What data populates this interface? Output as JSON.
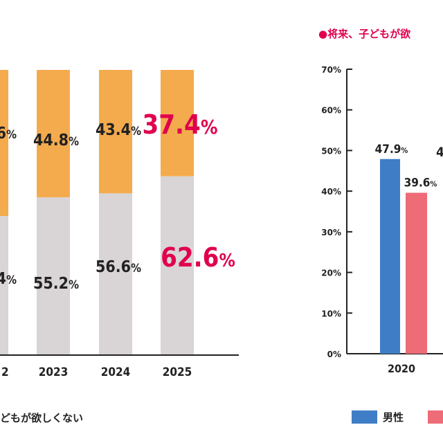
{
  "colors": {
    "orange": "#f4ab4d",
    "gray": "#d9d4d5",
    "accent": "#e0004d",
    "text": "#222222",
    "male": "#3f7ec6",
    "female": "#ee6b78"
  },
  "chart_data": [
    {
      "type": "bar",
      "stacked": true,
      "categories": [
        "2",
        "2023",
        "2024",
        "2025"
      ],
      "series": [
        {
          "values_label": [
            "4%",
            "55.2%",
            "56.6%",
            "62.6%"
          ],
          "values": [
            null,
            55.2,
            56.6,
            62.6
          ],
          "color": "#d9d4d5"
        },
        {
          "values_label": [
            "6%",
            "44.8%",
            "43.4%",
            "37.4%"
          ],
          "values": [
            null,
            44.8,
            43.4,
            37.4
          ],
          "color": "#f4ab4d"
        }
      ],
      "highlight_category": "2025",
      "ylim": [
        0,
        100
      ],
      "legend": [
        "どもが欲しくない"
      ]
    },
    {
      "type": "bar",
      "title": "●将来、子どもが欲",
      "categories": [
        "2020"
      ],
      "series": [
        {
          "name": "男性",
          "values": [
            47.9
          ],
          "labels": [
            "47.9%"
          ],
          "color": "#3f7ec6"
        },
        {
          "values": [
            39.6
          ],
          "labels": [
            "39.6%"
          ],
          "color": "#ee6b78"
        }
      ],
      "partial_label": "4",
      "ylim": [
        0,
        70
      ],
      "yticks": [
        "0%",
        "10%",
        "20%",
        "30%",
        "40%",
        "50%",
        "60%",
        "70%"
      ],
      "legend_position": "bottom"
    }
  ]
}
